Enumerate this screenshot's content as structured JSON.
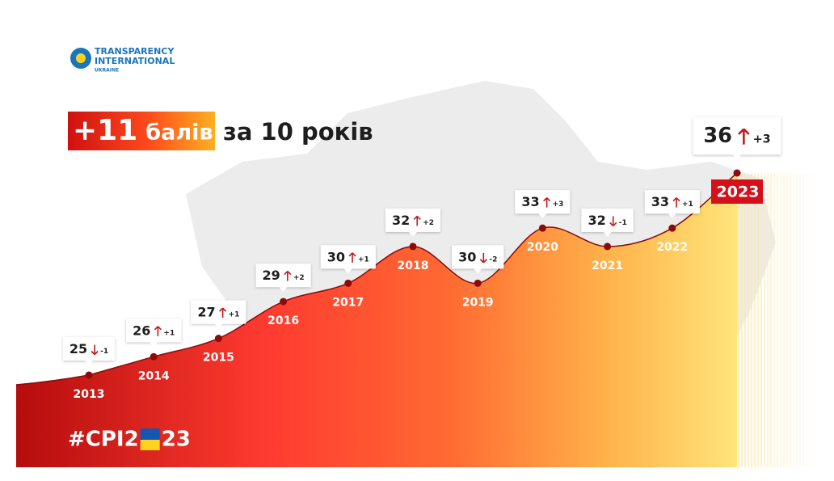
{
  "logo": {
    "line1": "TRANSPARENCY",
    "line2": "INTERNATIONAL",
    "line3": "UKRAINE"
  },
  "chart_data": {
    "type": "line",
    "title": {
      "score": "+11",
      "unit": "балів",
      "rest": "за 10 років"
    },
    "categories": [
      "2013",
      "2014",
      "2015",
      "2016",
      "2017",
      "2018",
      "2019",
      "2020",
      "2021",
      "2022",
      "2023"
    ],
    "values": [
      25,
      26,
      27,
      29,
      30,
      32,
      30,
      33,
      32,
      33,
      36
    ],
    "changes": [
      "-1",
      "+1",
      "+1",
      "+2",
      "+1",
      "+2",
      "-2",
      "+3",
      "-1",
      "+1",
      "+3"
    ],
    "color": "#8b0a0a",
    "hashtag": {
      "before": "#CPI2",
      "after": "23"
    }
  }
}
